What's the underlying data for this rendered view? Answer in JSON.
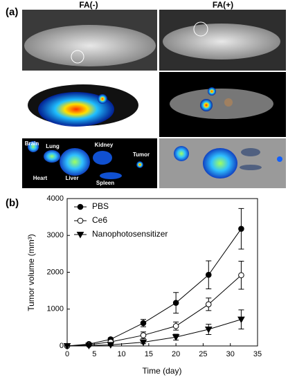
{
  "panel_a": {
    "label": "(a)",
    "columns": [
      "FA(-)",
      "FA(+)"
    ],
    "organs": [
      "Brain",
      "Lung",
      "Kidney",
      "Heart",
      "Liver",
      "Spleen",
      "Tumor"
    ]
  },
  "chart_data": {
    "type": "line",
    "panel_label": "(b)",
    "x_label": "Time (day)",
    "y_label": "Tumor volume (mm³)",
    "x": [
      0,
      4,
      8,
      14,
      20,
      26,
      32
    ],
    "series": [
      {
        "name": "PBS",
        "color": "#000000",
        "marker": "circle",
        "values": [
          0,
          50,
          180,
          620,
          1170,
          1930,
          3180
        ],
        "errors": [
          0,
          20,
          40,
          100,
          280,
          380,
          550
        ]
      },
      {
        "name": "Ce6",
        "color": "#000000",
        "marker": "open-circle",
        "values": [
          0,
          30,
          110,
          290,
          540,
          1130,
          1920
        ],
        "errors": [
          0,
          10,
          30,
          90,
          110,
          170,
          380
        ]
      },
      {
        "name": "Nanophotosensitizer",
        "color": "#000000",
        "marker": "triangle-down",
        "values": [
          0,
          10,
          30,
          100,
          240,
          450,
          720
        ],
        "errors": [
          0,
          5,
          15,
          40,
          80,
          140,
          260
        ]
      }
    ],
    "xlim": [
      0,
      35
    ],
    "xticks": [
      0,
      5,
      10,
      15,
      20,
      25,
      30,
      35
    ],
    "ylim": [
      0,
      4000
    ],
    "yticks": [
      0,
      1000,
      2000,
      3000,
      4000
    ],
    "legend": "upper left"
  }
}
